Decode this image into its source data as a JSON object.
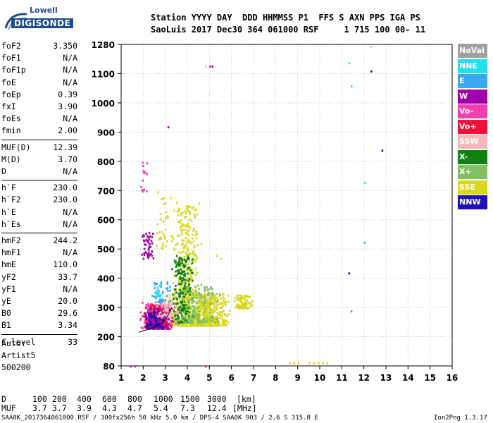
{
  "logo": {
    "top": "Lowell",
    "bottom": "DIGISONDE"
  },
  "header": {
    "line1": "Station YYYY DAY  DDD HHMMSS P1  FFS S AXN PPS IGA PS",
    "line2": "SaoLuis 2017 Dec30 364 061000 RSF     1 715 100 00- 11"
  },
  "params": [
    {
      "label": "foF2",
      "value": "3.350"
    },
    {
      "label": "foF1",
      "value": "N/A"
    },
    {
      "label": "foF1p",
      "value": "N/A"
    },
    {
      "label": "foE",
      "value": "N/A"
    },
    {
      "label": "foEp",
      "value": "0.39"
    },
    {
      "label": "fxI",
      "value": "3.90"
    },
    {
      "label": "foEs",
      "value": "N/A"
    },
    {
      "label": "fmin",
      "value": "2.00"
    },
    {
      "label": "MUF(D)",
      "value": "12.39"
    },
    {
      "label": "M(D)",
      "value": "3.70"
    },
    {
      "label": "D",
      "value": "N/A"
    },
    {
      "label": "h`F",
      "value": "230.0"
    },
    {
      "label": "h`F2",
      "value": "230.0"
    },
    {
      "label": "h`E",
      "value": "N/A"
    },
    {
      "label": "h`Es",
      "value": "N/A"
    },
    {
      "label": "hmF2",
      "value": "244.2"
    },
    {
      "label": "hmF1",
      "value": "N/A"
    },
    {
      "label": "hmE",
      "value": "110.0"
    },
    {
      "label": "yF2",
      "value": "33.7"
    },
    {
      "label": "yF1",
      "value": "N/A"
    },
    {
      "label": "yE",
      "value": "20.0"
    },
    {
      "label": "B0",
      "value": "29.6"
    },
    {
      "label": "B1",
      "value": "3.34"
    },
    {
      "label": "C-level",
      "value": "33"
    }
  ],
  "info": {
    "auto": "Auto:",
    "artist": "Artist5",
    "code": "500200"
  },
  "legend": [
    {
      "name": "NoVal",
      "bg": "#a0a0a0",
      "fg": "#ffffff"
    },
    {
      "name": "NNE",
      "bg": "#20e0f0",
      "fg": "#ffffff"
    },
    {
      "name": "E",
      "bg": "#3aa8f0",
      "fg": "#ffffff"
    },
    {
      "name": "W",
      "bg": "#a000a8",
      "fg": "#ffffff"
    },
    {
      "name": "Vo-",
      "bg": "#f040b0",
      "fg": "#ffffff"
    },
    {
      "name": "Vo+",
      "bg": "#f0103c",
      "fg": "#ffffff"
    },
    {
      "name": "SSW",
      "bg": "#f4b8b8",
      "fg": "#ffffff"
    },
    {
      "name": "X-",
      "bg": "#108010",
      "fg": "#ffffff"
    },
    {
      "name": "X+",
      "bg": "#80c060",
      "fg": "#ffffff"
    },
    {
      "name": "SSE",
      "bg": "#d8d820",
      "fg": "#ffffff"
    },
    {
      "name": "NNW",
      "bg": "#2010b8",
      "fg": "#ffffff"
    }
  ],
  "dmuf": {
    "d_label": "D",
    "d_values": [
      "100",
      "200",
      "400",
      "600",
      "800",
      "1000",
      "1500",
      "3000"
    ],
    "d_unit": "[km]",
    "muf_label": "MUF",
    "muf_values": [
      "3.7",
      "3.7",
      "3.9",
      "4.3",
      "4.7",
      "5.4",
      "7.3",
      "12.4"
    ],
    "muf_unit": "[MHz]"
  },
  "footer": {
    "source": "SAA0K_2017364061000.RSF / 300fx256h 50 kHz 5.0 km / DPS-4 SAA0K 903 / 2.6 S 315.8 E",
    "version": "Ion2Png 1.3.17"
  },
  "chart_data": {
    "type": "scatter",
    "title": "",
    "xlabel": "",
    "ylabel": "",
    "xlim": [
      1,
      16
    ],
    "ylim": [
      80,
      1280
    ],
    "xticks": [
      1,
      2,
      3,
      4,
      5,
      6,
      7,
      8,
      9,
      10,
      11,
      12,
      13,
      14,
      15,
      16
    ],
    "yticks": [
      80,
      200,
      300,
      400,
      500,
      600,
      700,
      800,
      900,
      1000,
      1100,
      1280
    ],
    "grid": true,
    "legend_position": "right",
    "point_clusters": [
      {
        "series": "SSE",
        "x": [
          3.0,
          6.0
        ],
        "y": [
          240,
          350
        ],
        "n": 700
      },
      {
        "series": "SSE",
        "x": [
          3.3,
          4.5
        ],
        "y": [
          350,
          650
        ],
        "n": 250
      },
      {
        "series": "SSE",
        "x": [
          6.0,
          7.0
        ],
        "y": [
          300,
          345
        ],
        "n": 80
      },
      {
        "series": "X-",
        "x": [
          3.2,
          4.3
        ],
        "y": [
          250,
          480
        ],
        "n": 220
      },
      {
        "series": "X+",
        "x": [
          3.5,
          5.5
        ],
        "y": [
          250,
          380
        ],
        "n": 150
      },
      {
        "series": "Vo-",
        "x": [
          1.8,
          3.5
        ],
        "y": [
          230,
          320
        ],
        "n": 220
      },
      {
        "series": "Vo+",
        "x": [
          1.9,
          3.4
        ],
        "y": [
          235,
          310
        ],
        "n": 160
      },
      {
        "series": "W",
        "x": [
          1.9,
          3.3
        ],
        "y": [
          230,
          300
        ],
        "n": 140
      },
      {
        "series": "W",
        "x": [
          1.8,
          2.5
        ],
        "y": [
          470,
          560
        ],
        "n": 50
      },
      {
        "series": "NNW",
        "x": [
          2.0,
          3.0
        ],
        "y": [
          235,
          290
        ],
        "n": 60
      },
      {
        "series": "E",
        "x": [
          2.2,
          3.3
        ],
        "y": [
          320,
          390
        ],
        "n": 40
      },
      {
        "series": "NNE",
        "x": [
          2.3,
          2.9
        ],
        "y": [
          340,
          380
        ],
        "n": 20
      },
      {
        "series": "SSW",
        "x": [
          2.5,
          3.6
        ],
        "y": [
          270,
          320
        ],
        "n": 60
      },
      {
        "series": "Vo-",
        "x": [
          1.8,
          2.2
        ],
        "y": [
          700,
          800
        ],
        "n": 15
      },
      {
        "series": "SSE",
        "x": [
          2.5,
          3.6
        ],
        "y": [
          500,
          700
        ],
        "n": 40
      }
    ],
    "points": [
      {
        "series": "SSE",
        "x": [
          8.6,
          8.8,
          9.0,
          9.5,
          9.7,
          9.9,
          10.1,
          10.3
        ],
        "y": [
          95,
          95,
          95,
          95,
          95,
          95,
          95,
          95
        ]
      },
      {
        "series": "NNE",
        "x": [
          11.3,
          11.4,
          12.0
        ],
        "y": [
          1170,
          1060,
          730
        ]
      },
      {
        "series": "E",
        "x": [
          12.0,
          11.4
        ],
        "y": [
          525,
          290
        ]
      },
      {
        "series": "NNW",
        "x": [
          12.3,
          12.8,
          11.3
        ],
        "y": [
          1120,
          840,
          420
        ]
      },
      {
        "series": "Vo+",
        "x": [
          5.0,
          4.8
        ],
        "y": [
          1150,
          82
        ]
      },
      {
        "series": "W",
        "x": [
          5.1
        ],
        "y": [
          1150
        ]
      },
      {
        "series": "SSW",
        "x": [
          4.8,
          12.3
        ],
        "y": [
          1150,
          1270
        ]
      },
      {
        "series": "SSE",
        "x": [
          4.5,
          4.6,
          5.3,
          5.5
        ],
        "y": [
          660,
          520,
          480,
          470
        ]
      },
      {
        "series": "W",
        "x": [
          1.4,
          1.6,
          3.1
        ],
        "y": [
          82,
          82,
          920
        ]
      }
    ],
    "curve": {
      "x": [
        1.8,
        2.1,
        2.5,
        2.9,
        3.1,
        3.3
      ],
      "y": [
        215,
        222,
        232,
        250,
        270,
        300
      ]
    }
  }
}
